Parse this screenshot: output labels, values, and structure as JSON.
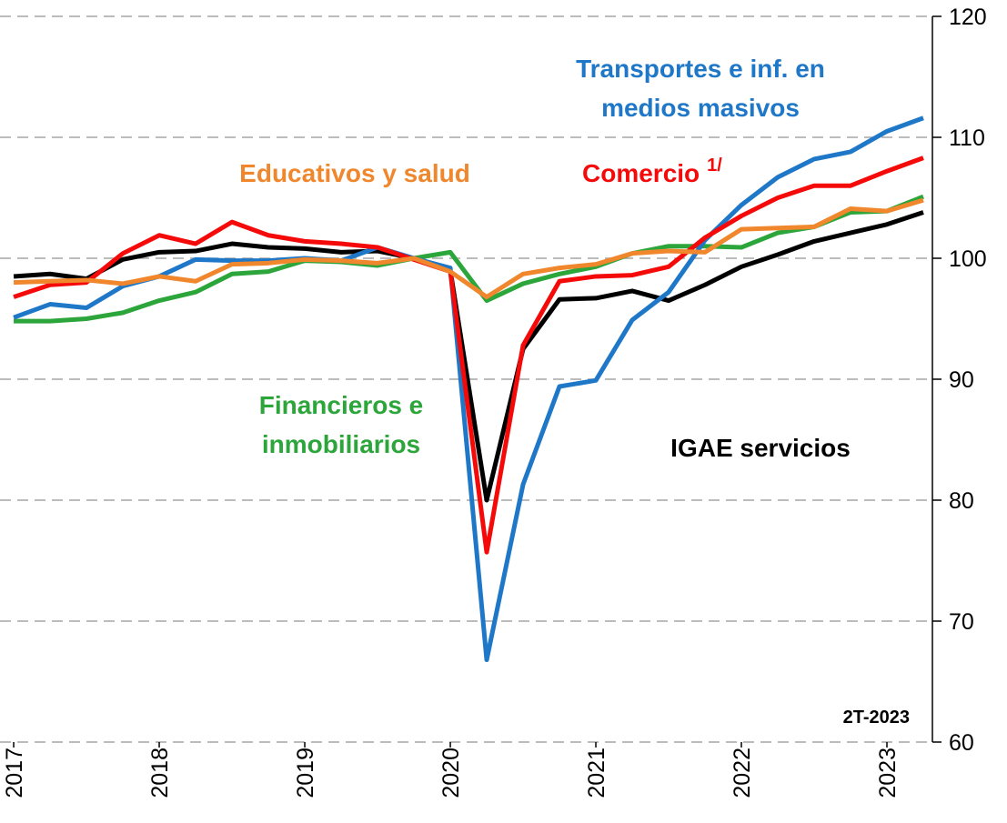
{
  "chart_data": {
    "type": "line",
    "x": [
      2017,
      2017.25,
      2017.5,
      2017.75,
      2018,
      2018.25,
      2018.5,
      2018.75,
      2019,
      2019.25,
      2019.5,
      2019.75,
      2020,
      2020.25,
      2020.5,
      2020.75,
      2021,
      2021.25,
      2021.5,
      2021.75,
      2022,
      2022.25,
      2022.5,
      2022.75,
      2023,
      2023.25
    ],
    "xlim": [
      2016.906,
      2023.3125
    ],
    "xticks": [
      2017,
      2018,
      2019,
      2020,
      2021,
      2022,
      2023
    ],
    "ylim": [
      60,
      120
    ],
    "yticks": [
      60,
      70,
      80,
      90,
      100,
      110,
      120
    ],
    "grid": true,
    "series": [
      {
        "name_lines": [
          "Financieros e",
          "inmobiliarios"
        ],
        "color": "#2ca53a",
        "values": [
          94.8,
          94.8,
          95.0,
          95.5,
          96.5,
          97.2,
          98.7,
          98.9,
          99.8,
          99.7,
          99.4,
          100.0,
          100.5,
          96.5,
          97.9,
          98.7,
          99.3,
          100.4,
          101.0,
          101.0,
          100.9,
          102.1,
          102.6,
          103.8,
          103.9,
          105.1
        ]
      },
      {
        "name_lines": [
          "IGAE servicios"
        ],
        "color": "#000000",
        "values": [
          98.5,
          98.7,
          98.3,
          99.9,
          100.5,
          100.6,
          101.2,
          100.9,
          100.8,
          100.5,
          100.6,
          100.0,
          99.0,
          80.0,
          92.5,
          96.6,
          96.7,
          97.3,
          96.5,
          97.8,
          99.3,
          100.3,
          101.4,
          102.1,
          102.8,
          103.8
        ]
      },
      {
        "name_lines": [
          "Transportes e inf. en",
          "medios masivos"
        ],
        "color": "#1f77c8",
        "values": [
          95.1,
          96.2,
          95.9,
          97.7,
          98.5,
          99.9,
          99.8,
          99.8,
          100.0,
          99.8,
          100.9,
          100.0,
          99.2,
          66.8,
          81.3,
          89.4,
          89.9,
          94.9,
          97.2,
          101.5,
          104.4,
          106.7,
          108.2,
          108.8,
          110.5,
          111.6
        ]
      },
      {
        "name_lines": [
          "Comercio"
        ],
        "note": "1/",
        "color": "#f50a0a",
        "values": [
          96.8,
          97.8,
          98.0,
          100.4,
          101.9,
          101.2,
          103.0,
          101.9,
          101.4,
          101.2,
          100.9,
          99.9,
          98.9,
          75.7,
          92.8,
          98.1,
          98.5,
          98.6,
          99.3,
          101.7,
          103.5,
          105.0,
          106.0,
          106.0,
          107.2,
          108.3
        ]
      },
      {
        "name_lines": [
          "Educativos y salud"
        ],
        "color": "#f0872d",
        "values": [
          98.0,
          98.1,
          98.2,
          97.9,
          98.5,
          98.1,
          99.5,
          99.6,
          99.9,
          99.8,
          99.6,
          100.0,
          98.9,
          96.8,
          98.7,
          99.2,
          99.5,
          100.4,
          100.6,
          100.5,
          102.4,
          102.5,
          102.6,
          104.1,
          103.9,
          104.8
        ]
      }
    ],
    "annotation": "2T-2023"
  }
}
